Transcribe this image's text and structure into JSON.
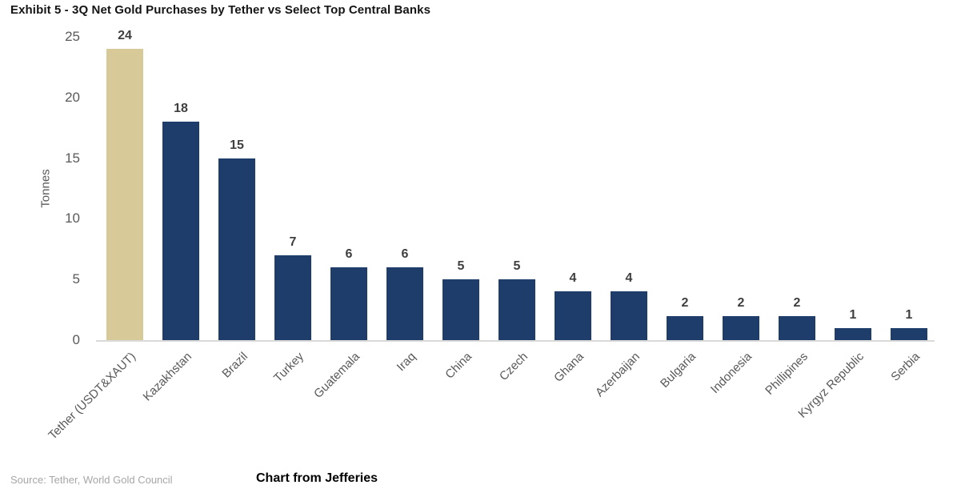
{
  "title": "Exhibit 5 - 3Q Net Gold Purchases by Tether vs Select Top Central Banks",
  "footer": {
    "source": "Source: Tether, World Gold Council",
    "credit": "Chart from Jefferies"
  },
  "chart_data": {
    "type": "bar",
    "title": "Exhibit 5 - 3Q Net Gold Purchases by Tether vs Select Top Central Banks",
    "xlabel": "",
    "ylabel": "Tonnes",
    "ylim": [
      0,
      25
    ],
    "yticks": [
      0,
      5,
      10,
      15,
      20,
      25
    ],
    "grid": false,
    "legend": "none",
    "categories": [
      "Tether (USDT&XAUT)",
      "Kazakhstan",
      "Brazil",
      "Turkey",
      "Guatemala",
      "Iraq",
      "China",
      "Czech",
      "Ghana",
      "Azerbaijan",
      "Bulgaria",
      "Indonesia",
      "Phillipines",
      "Kyrgyz Republic",
      "Serbia"
    ],
    "values": [
      24,
      18,
      15,
      7,
      6,
      6,
      5,
      5,
      4,
      4,
      2,
      2,
      2,
      1,
      1
    ],
    "value_labels": [
      "24",
      "18",
      "15",
      "7",
      "6",
      "6",
      "5",
      "5",
      "4",
      "4",
      "2",
      "2",
      "2",
      "1",
      "1"
    ],
    "colors": {
      "highlight_bar": "#d8ca98",
      "default_bar": "#1f3d6b",
      "highlight_index": 0,
      "value_label": "#3f3f3f",
      "axis_text": "#595959",
      "axis_line": "#dadada"
    }
  }
}
